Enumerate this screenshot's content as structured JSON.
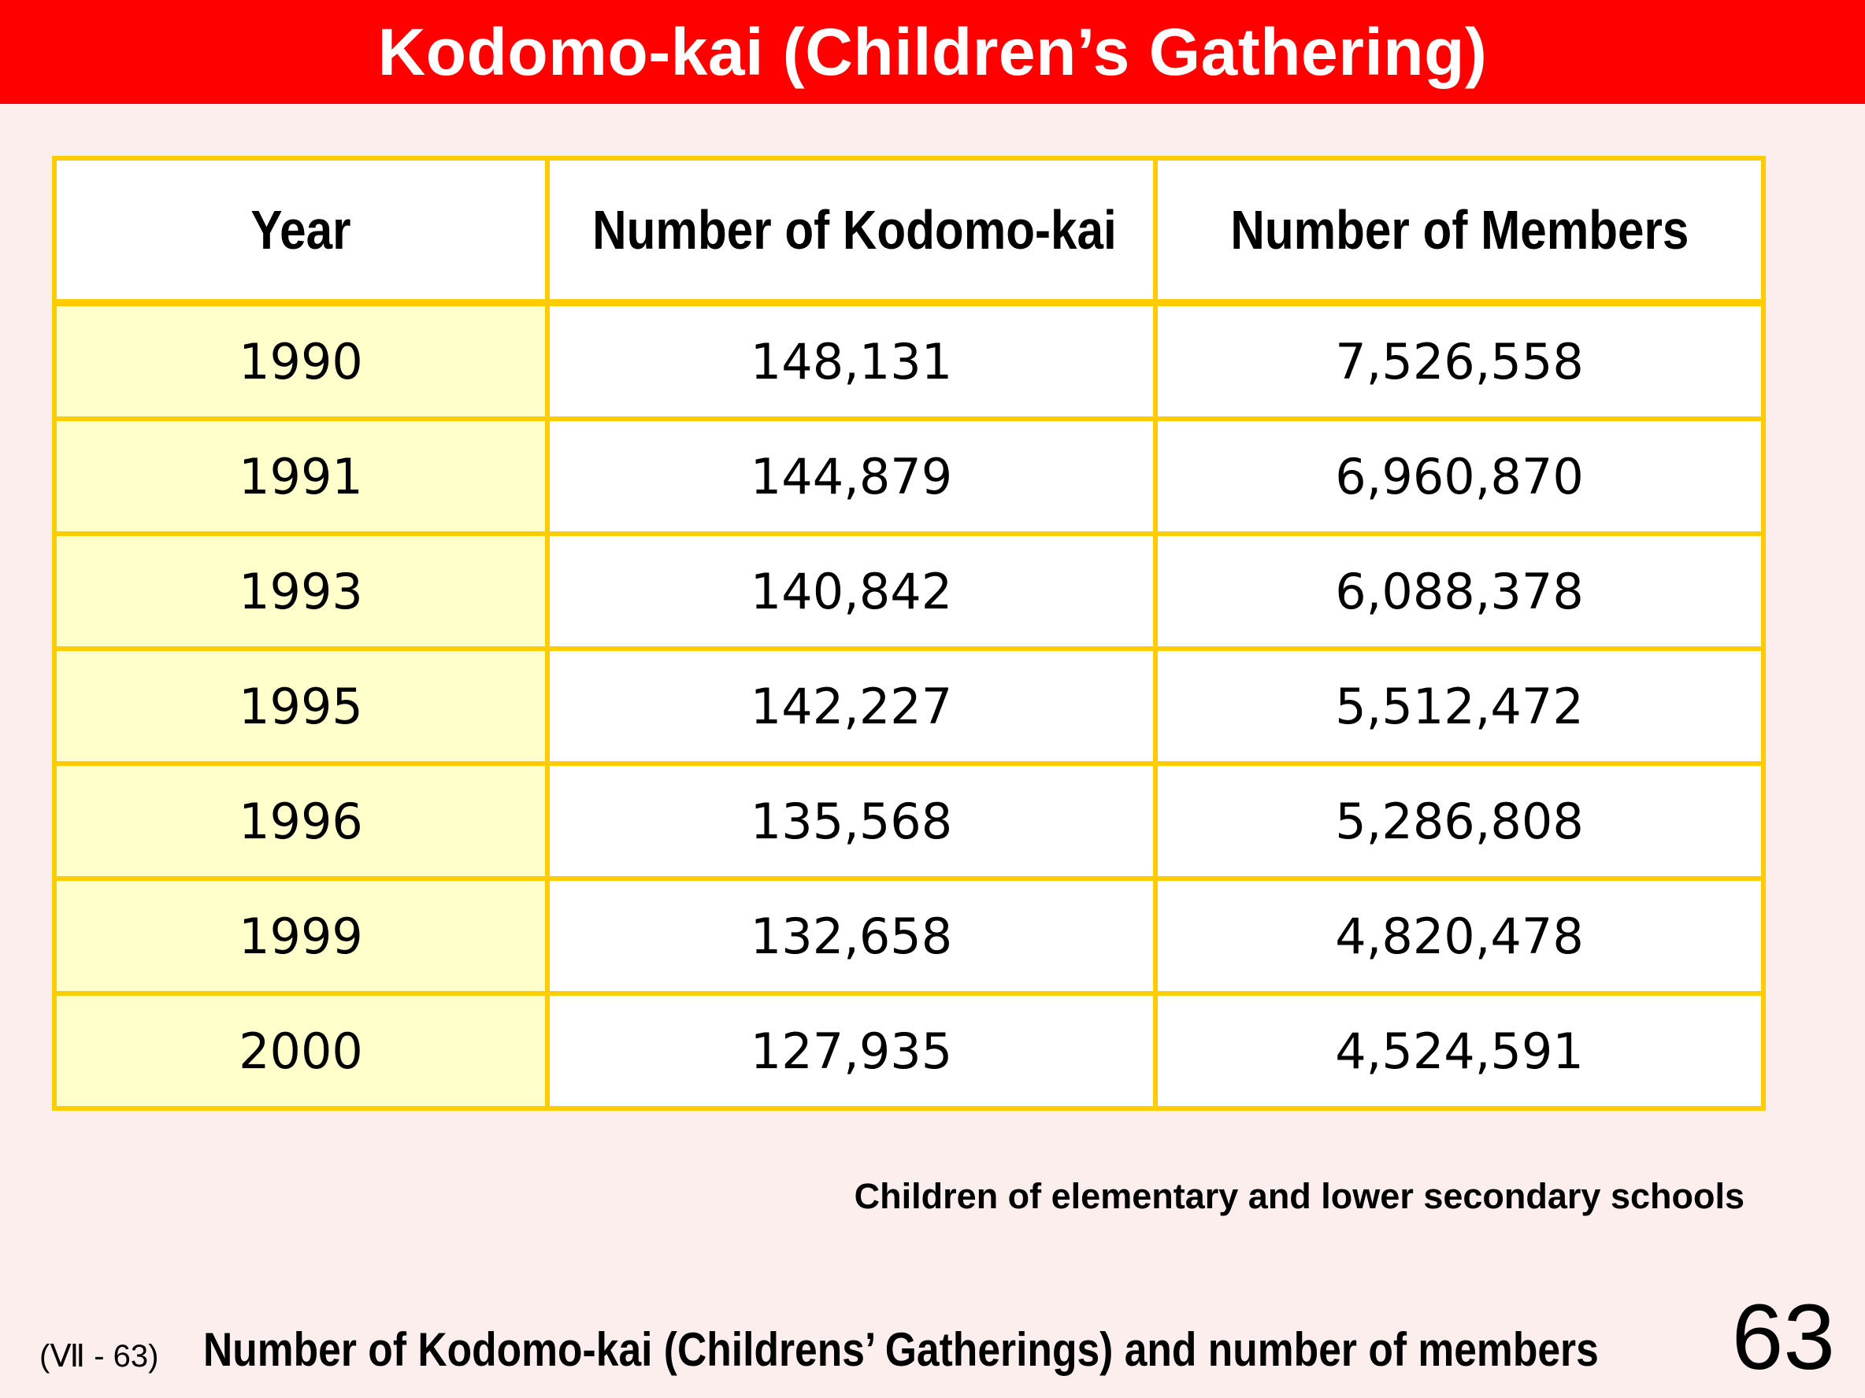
{
  "title": "Kodomo-kai (Children’s Gathering)",
  "table": {
    "headers": [
      "Year",
      "Number of Kodomo-kai",
      "Number of Members"
    ],
    "rows": [
      [
        "1990",
        "148,131",
        "7,526,558"
      ],
      [
        "1991",
        "144,879",
        "6,960,870"
      ],
      [
        "1993",
        "140,842",
        "6,088,378"
      ],
      [
        "1995",
        "142,227",
        "5,512,472"
      ],
      [
        "1996",
        "135,568",
        "5,286,808"
      ],
      [
        "1999",
        "132,658",
        "4,820,478"
      ],
      [
        "2000",
        "127,935",
        "4,524,591"
      ]
    ]
  },
  "note": "Children of elementary and lower secondary schools",
  "footer": {
    "code": "(Ⅶ - 63)",
    "caption": "Number of Kodomo-kai (Childrens’ Gatherings) and number of members",
    "page_number": "63"
  },
  "colors": {
    "title_bar": "#ff0000",
    "title_text": "#ffffff",
    "background": "#fdeeee",
    "table_border": "#ffcc00",
    "year_cell_bg": "#ffffcc",
    "cell_bg": "#ffffff"
  }
}
